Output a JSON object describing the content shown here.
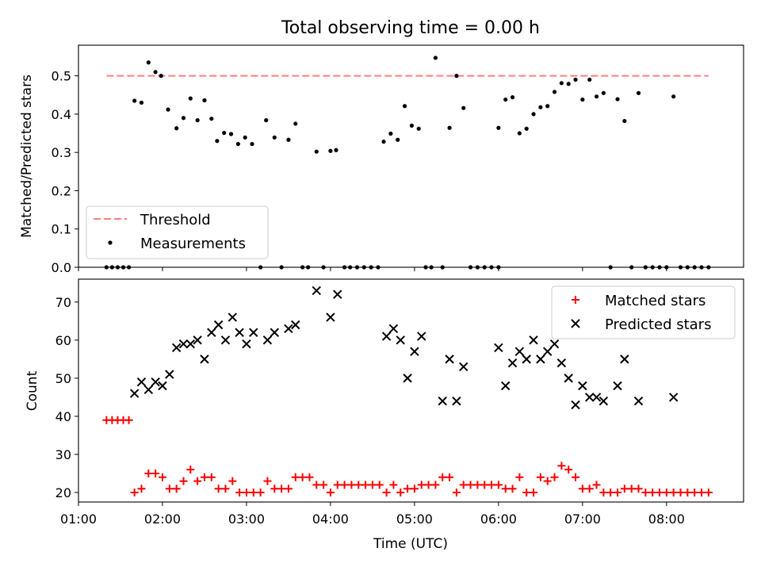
{
  "chart_data": [
    {
      "type": "scatter",
      "title": "Total observing time = 0.00 h",
      "ylabel": "Matched/Predicted stars",
      "xlabel": "",
      "xlim": [
        "01:00",
        "08:55"
      ],
      "ylim": [
        0,
        0.58
      ],
      "yticks": [
        0.0,
        0.1,
        0.2,
        0.3,
        0.4,
        0.5
      ],
      "ytick_labels": [
        "0.0",
        "0.1",
        "0.2",
        "0.3",
        "0.4",
        "0.5"
      ],
      "legend_position": "lower-left",
      "threshold": {
        "name": "Threshold",
        "value": 0.5,
        "x_range": [
          "01:20",
          "08:30"
        ],
        "color": "#ff7f7f",
        "style": "dashed"
      },
      "series": [
        {
          "name": "Measurements",
          "color": "#000000",
          "marker": "dot",
          "points": [
            [
              "01:20",
              0.0
            ],
            [
              "01:24",
              0.0
            ],
            [
              "01:28",
              0.0
            ],
            [
              "01:32",
              0.0
            ],
            [
              "01:36",
              0.0
            ],
            [
              "01:40",
              0.435
            ],
            [
              "01:45",
              0.43
            ],
            [
              "01:50",
              0.535
            ],
            [
              "01:55",
              0.51
            ],
            [
              "01:59",
              0.5
            ],
            [
              "02:04",
              0.412
            ],
            [
              "02:10",
              0.363
            ],
            [
              "02:15",
              0.39
            ],
            [
              "02:20",
              0.441
            ],
            [
              "02:25",
              0.384
            ],
            [
              "02:30",
              0.436
            ],
            [
              "02:35",
              0.388
            ],
            [
              "02:39",
              0.33
            ],
            [
              "02:44",
              0.351
            ],
            [
              "02:49",
              0.348
            ],
            [
              "02:54",
              0.322
            ],
            [
              "02:59",
              0.339
            ],
            [
              "03:04",
              0.322
            ],
            [
              "03:10",
              0.0
            ],
            [
              "03:14",
              0.384
            ],
            [
              "03:20",
              0.339
            ],
            [
              "03:25",
              0.0
            ],
            [
              "03:30",
              0.333
            ],
            [
              "03:35",
              0.375
            ],
            [
              "03:40",
              0.0
            ],
            [
              "03:44",
              0.0
            ],
            [
              "03:50",
              0.302
            ],
            [
              "03:55",
              0.0
            ],
            [
              "04:00",
              0.304
            ],
            [
              "04:04",
              0.306
            ],
            [
              "04:10",
              0.0
            ],
            [
              "04:14",
              0.0
            ],
            [
              "04:19",
              0.0
            ],
            [
              "04:24",
              0.0
            ],
            [
              "04:29",
              0.0
            ],
            [
              "04:34",
              0.0
            ],
            [
              "04:38",
              0.328
            ],
            [
              "04:43",
              0.349
            ],
            [
              "04:48",
              0.333
            ],
            [
              "04:53",
              0.421
            ],
            [
              "04:58",
              0.37
            ],
            [
              "05:03",
              0.362
            ],
            [
              "05:08",
              0.0
            ],
            [
              "05:12",
              0.0
            ],
            [
              "05:15",
              0.547
            ],
            [
              "05:20",
              0.0
            ],
            [
              "05:25",
              0.364
            ],
            [
              "05:30",
              0.5
            ],
            [
              "05:35",
              0.416
            ],
            [
              "05:40",
              0.0
            ],
            [
              "05:45",
              0.0
            ],
            [
              "05:50",
              0.0
            ],
            [
              "05:55",
              0.0
            ],
            [
              "06:00",
              0.0
            ],
            [
              "06:00",
              0.364
            ],
            [
              "06:05",
              0.438
            ],
            [
              "06:10",
              0.444
            ],
            [
              "06:15",
              0.35
            ],
            [
              "06:20",
              0.362
            ],
            [
              "06:25",
              0.4
            ],
            [
              "06:30",
              0.418
            ],
            [
              "06:35",
              0.421
            ],
            [
              "06:40",
              0.458
            ],
            [
              "06:45",
              0.481
            ],
            [
              "06:50",
              0.479
            ],
            [
              "06:55",
              0.49
            ],
            [
              "07:00",
              0.438
            ],
            [
              "07:05",
              0.49
            ],
            [
              "07:10",
              0.446
            ],
            [
              "07:15",
              0.455
            ],
            [
              "07:20",
              0.0
            ],
            [
              "07:25",
              0.439
            ],
            [
              "07:30",
              0.382
            ],
            [
              "07:35",
              0.0
            ],
            [
              "07:40",
              0.455
            ],
            [
              "07:45",
              0.0
            ],
            [
              "07:50",
              0.0
            ],
            [
              "07:55",
              0.0
            ],
            [
              "08:00",
              0.0
            ],
            [
              "08:05",
              0.446
            ],
            [
              "08:10",
              0.0
            ],
            [
              "08:15",
              0.0
            ],
            [
              "08:20",
              0.0
            ],
            [
              "08:25",
              0.0
            ],
            [
              "08:30",
              0.0
            ]
          ]
        }
      ]
    },
    {
      "type": "scatter",
      "title": "",
      "xlabel": "Time (UTC)",
      "ylabel": "Count",
      "xlim": [
        "01:00",
        "08:55"
      ],
      "ylim": [
        17.5,
        76
      ],
      "xticks": [
        "01:00",
        "02:00",
        "03:00",
        "04:00",
        "05:00",
        "06:00",
        "07:00",
        "08:00"
      ],
      "yticks": [
        20,
        30,
        40,
        50,
        60,
        70
      ],
      "ytick_labels": [
        "20",
        "30",
        "40",
        "50",
        "60",
        "70"
      ],
      "legend_position": "top-right",
      "series": [
        {
          "name": "Matched stars",
          "color": "#ff0000",
          "marker": "plus",
          "points": [
            [
              "01:20",
              39
            ],
            [
              "01:24",
              39
            ],
            [
              "01:28",
              39
            ],
            [
              "01:32",
              39
            ],
            [
              "01:36",
              39
            ],
            [
              "01:40",
              20
            ],
            [
              "01:45",
              21
            ],
            [
              "01:50",
              25
            ],
            [
              "01:55",
              25
            ],
            [
              "02:00",
              24
            ],
            [
              "02:05",
              21
            ],
            [
              "02:10",
              21
            ],
            [
              "02:15",
              23
            ],
            [
              "02:20",
              26
            ],
            [
              "02:25",
              23
            ],
            [
              "02:30",
              24
            ],
            [
              "02:35",
              24
            ],
            [
              "02:40",
              21
            ],
            [
              "02:45",
              21
            ],
            [
              "02:50",
              23
            ],
            [
              "02:55",
              20
            ],
            [
              "03:00",
              20
            ],
            [
              "03:05",
              20
            ],
            [
              "03:10",
              20
            ],
            [
              "03:15",
              23
            ],
            [
              "03:20",
              21
            ],
            [
              "03:25",
              21
            ],
            [
              "03:30",
              21
            ],
            [
              "03:35",
              24
            ],
            [
              "03:40",
              24
            ],
            [
              "03:45",
              24
            ],
            [
              "03:50",
              22
            ],
            [
              "03:55",
              22
            ],
            [
              "04:00",
              20
            ],
            [
              "04:05",
              22
            ],
            [
              "04:10",
              22
            ],
            [
              "04:15",
              22
            ],
            [
              "04:20",
              22
            ],
            [
              "04:25",
              22
            ],
            [
              "04:30",
              22
            ],
            [
              "04:35",
              22
            ],
            [
              "04:40",
              20
            ],
            [
              "04:45",
              22
            ],
            [
              "04:50",
              20
            ],
            [
              "04:55",
              21
            ],
            [
              "05:00",
              21
            ],
            [
              "05:05",
              22
            ],
            [
              "05:10",
              22
            ],
            [
              "05:15",
              22
            ],
            [
              "05:20",
              24
            ],
            [
              "05:25",
              24
            ],
            [
              "05:30",
              20
            ],
            [
              "05:35",
              22
            ],
            [
              "05:40",
              22
            ],
            [
              "05:45",
              22
            ],
            [
              "05:50",
              22
            ],
            [
              "05:55",
              22
            ],
            [
              "06:00",
              22
            ],
            [
              "06:05",
              21
            ],
            [
              "06:10",
              21
            ],
            [
              "06:15",
              24
            ],
            [
              "06:20",
              20
            ],
            [
              "06:25",
              20
            ],
            [
              "06:30",
              24
            ],
            [
              "06:35",
              23
            ],
            [
              "06:40",
              24
            ],
            [
              "06:45",
              27
            ],
            [
              "06:50",
              26
            ],
            [
              "06:55",
              24
            ],
            [
              "07:00",
              21
            ],
            [
              "07:05",
              21
            ],
            [
              "07:10",
              22
            ],
            [
              "07:15",
              20
            ],
            [
              "07:20",
              20
            ],
            [
              "07:25",
              20
            ],
            [
              "07:30",
              21
            ],
            [
              "07:35",
              21
            ],
            [
              "07:40",
              21
            ],
            [
              "07:45",
              20
            ],
            [
              "07:50",
              20
            ],
            [
              "07:55",
              20
            ],
            [
              "08:00",
              20
            ],
            [
              "08:05",
              20
            ],
            [
              "08:10",
              20
            ],
            [
              "08:15",
              20
            ],
            [
              "08:20",
              20
            ],
            [
              "08:25",
              20
            ],
            [
              "08:30",
              20
            ]
          ]
        },
        {
          "name": "Predicted stars",
          "color": "#000000",
          "marker": "x",
          "points": [
            [
              "01:40",
              46
            ],
            [
              "01:45",
              49
            ],
            [
              "01:50",
              47
            ],
            [
              "01:55",
              49
            ],
            [
              "02:00",
              48
            ],
            [
              "02:05",
              51
            ],
            [
              "02:10",
              58
            ],
            [
              "02:15",
              59
            ],
            [
              "02:20",
              59
            ],
            [
              "02:25",
              60
            ],
            [
              "02:30",
              55
            ],
            [
              "02:35",
              62
            ],
            [
              "02:40",
              64
            ],
            [
              "02:45",
              60
            ],
            [
              "02:50",
              66
            ],
            [
              "02:55",
              62
            ],
            [
              "03:00",
              59
            ],
            [
              "03:05",
              62
            ],
            [
              "03:15",
              60
            ],
            [
              "03:20",
              62
            ],
            [
              "03:30",
              63
            ],
            [
              "03:35",
              64
            ],
            [
              "03:50",
              73
            ],
            [
              "04:00",
              66
            ],
            [
              "04:05",
              72
            ],
            [
              "04:40",
              61
            ],
            [
              "04:45",
              63
            ],
            [
              "04:50",
              60
            ],
            [
              "04:55",
              50
            ],
            [
              "05:00",
              57
            ],
            [
              "05:05",
              61
            ],
            [
              "05:20",
              44
            ],
            [
              "05:25",
              55
            ],
            [
              "05:30",
              44
            ],
            [
              "05:35",
              53
            ],
            [
              "06:00",
              58
            ],
            [
              "06:05",
              48
            ],
            [
              "06:10",
              54
            ],
            [
              "06:15",
              57
            ],
            [
              "06:20",
              55
            ],
            [
              "06:25",
              60
            ],
            [
              "06:30",
              55
            ],
            [
              "06:35",
              57
            ],
            [
              "06:40",
              59
            ],
            [
              "06:45",
              54
            ],
            [
              "06:50",
              50
            ],
            [
              "06:55",
              43
            ],
            [
              "07:00",
              48
            ],
            [
              "07:05",
              45
            ],
            [
              "07:10",
              45
            ],
            [
              "07:15",
              44
            ],
            [
              "07:25",
              48
            ],
            [
              "07:30",
              55
            ],
            [
              "07:40",
              44
            ],
            [
              "08:05",
              45
            ]
          ]
        }
      ]
    }
  ]
}
